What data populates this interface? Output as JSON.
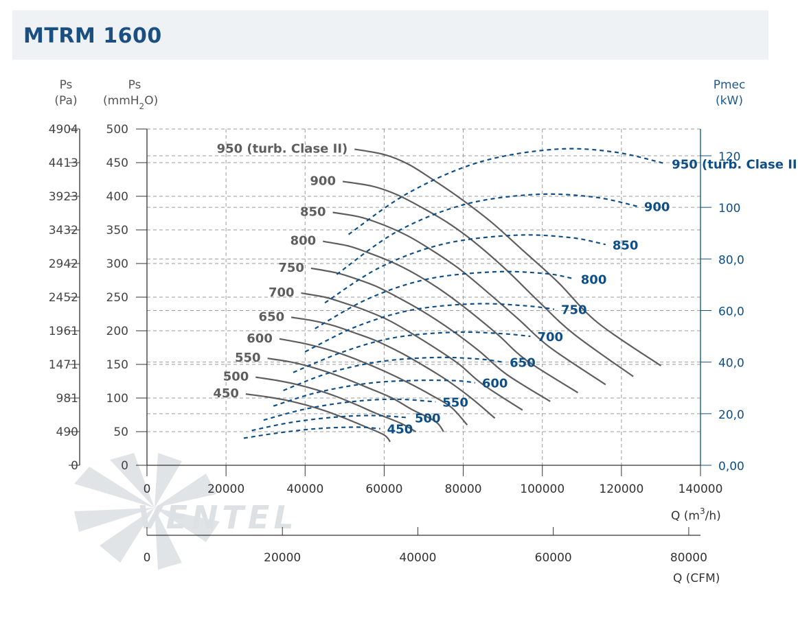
{
  "title": "MTRM 1600",
  "watermark": "VENTEL",
  "colors": {
    "pressure": "#5e5e5e",
    "power": "#0d4f86",
    "grid": "#9a9a9a",
    "title_bg": "#eef2f5"
  },
  "axes_labels": {
    "ps_pa": [
      "Ps",
      "(Pa)"
    ],
    "ps_mm": {
      "line1": "Ps",
      "line2_pre": "(mmH",
      "sub": "2",
      "line2_post": "O)"
    },
    "pmec": [
      "Pmec",
      "(kW)"
    ],
    "q_m3h": {
      "pre": "Q (m",
      "sup": "3",
      "post": "/h)"
    },
    "q_cfm": "Q (CFM)"
  },
  "chart_data": {
    "type": "line",
    "title": "MTRM 1600",
    "x": {
      "label": "Q (m3/h)",
      "range": [
        0,
        140000
      ],
      "ticks": [
        0,
        20000,
        40000,
        60000,
        80000,
        100000,
        120000,
        140000
      ]
    },
    "x_cfm": {
      "label": "Q (CFM)",
      "ticks": [
        0,
        20000,
        40000,
        60000,
        80000
      ]
    },
    "y_left_mm": {
      "label": "Ps (mmH2O)",
      "range": [
        0,
        500
      ],
      "ticks": [
        0,
        50,
        100,
        150,
        200,
        250,
        300,
        350,
        400,
        450,
        500
      ]
    },
    "y_left_pa": {
      "label": "Ps (Pa)",
      "ticks": [
        "0",
        "490",
        "981",
        "1471",
        "1961",
        "2452",
        "2942",
        "3432",
        "3923",
        "4413",
        "4904"
      ]
    },
    "y_right": {
      "label": "Pmec (kW)",
      "range": [
        0,
        130
      ],
      "ticks": [
        "0,00",
        "20,0",
        "40,0",
        "60,0",
        "80,0",
        "100",
        "120"
      ],
      "tick_values": [
        0,
        20,
        40,
        60,
        80,
        100,
        120
      ]
    },
    "grid": true,
    "pressure_series": [
      {
        "name": "450",
        "points": [
          [
            25000,
            106
          ],
          [
            30000,
            102
          ],
          [
            35000,
            97
          ],
          [
            40000,
            90
          ],
          [
            45000,
            81
          ],
          [
            50000,
            70
          ],
          [
            55000,
            58
          ],
          [
            60000,
            45
          ],
          [
            61500,
            35
          ]
        ]
      },
      {
        "name": "500",
        "points": [
          [
            27500,
            131
          ],
          [
            33000,
            126
          ],
          [
            38000,
            120
          ],
          [
            43000,
            112
          ],
          [
            48000,
            102
          ],
          [
            53000,
            90
          ],
          [
            58000,
            77
          ],
          [
            64000,
            63
          ],
          [
            68000,
            50
          ]
        ]
      },
      {
        "name": "550",
        "points": [
          [
            30500,
            159
          ],
          [
            36000,
            154
          ],
          [
            41000,
            147
          ],
          [
            46000,
            138
          ],
          [
            51000,
            127
          ],
          [
            56000,
            115
          ],
          [
            62000,
            100
          ],
          [
            67000,
            83
          ],
          [
            73000,
            65
          ],
          [
            75000,
            50
          ]
        ]
      },
      {
        "name": "600",
        "points": [
          [
            33500,
            188
          ],
          [
            39000,
            182
          ],
          [
            44000,
            175
          ],
          [
            49000,
            166
          ],
          [
            54000,
            155
          ],
          [
            60000,
            140
          ],
          [
            66000,
            123
          ],
          [
            72000,
            104
          ],
          [
            77000,
            86
          ],
          [
            81000,
            60
          ]
        ]
      },
      {
        "name": "650",
        "points": [
          [
            36500,
            220
          ],
          [
            42000,
            215
          ],
          [
            47000,
            208
          ],
          [
            52000,
            198
          ],
          [
            58000,
            185
          ],
          [
            64000,
            168
          ],
          [
            70000,
            148
          ],
          [
            76000,
            126
          ],
          [
            82000,
            100
          ],
          [
            88000,
            70
          ]
        ]
      },
      {
        "name": "700",
        "points": [
          [
            39000,
            256
          ],
          [
            45000,
            250
          ],
          [
            50000,
            241
          ],
          [
            55000,
            231
          ],
          [
            61000,
            216
          ],
          [
            67000,
            196
          ],
          [
            73000,
            174
          ],
          [
            79000,
            150
          ],
          [
            85000,
            120
          ],
          [
            95000,
            82
          ]
        ]
      },
      {
        "name": "750",
        "points": [
          [
            41500,
            293
          ],
          [
            48000,
            286
          ],
          [
            53000,
            277
          ],
          [
            58000,
            266
          ],
          [
            64000,
            248
          ],
          [
            70000,
            228
          ],
          [
            77000,
            201
          ],
          [
            84000,
            170
          ],
          [
            91000,
            135
          ],
          [
            102000,
            95
          ]
        ]
      },
      {
        "name": "800",
        "points": [
          [
            44500,
            333
          ],
          [
            51000,
            326
          ],
          [
            56000,
            316
          ],
          [
            62000,
            302
          ],
          [
            68000,
            284
          ],
          [
            75000,
            258
          ],
          [
            82000,
            227
          ],
          [
            89000,
            193
          ],
          [
            96000,
            156
          ],
          [
            109000,
            108
          ]
        ]
      },
      {
        "name": "850",
        "points": [
          [
            47000,
            376
          ],
          [
            54000,
            369
          ],
          [
            60000,
            357
          ],
          [
            66000,
            341
          ],
          [
            72000,
            320
          ],
          [
            79000,
            292
          ],
          [
            86000,
            258
          ],
          [
            94000,
            217
          ],
          [
            102000,
            175
          ],
          [
            116000,
            120
          ]
        ]
      },
      {
        "name": "900",
        "points": [
          [
            49500,
            422
          ],
          [
            57000,
            415
          ],
          [
            63000,
            403
          ],
          [
            69000,
            385
          ],
          [
            76000,
            361
          ],
          [
            83000,
            331
          ],
          [
            91000,
            290
          ],
          [
            99000,
            244
          ],
          [
            108000,
            195
          ],
          [
            123000,
            132
          ]
        ]
      },
      {
        "name": "950 (turb. Clase II)",
        "points": [
          [
            52500,
            470
          ],
          [
            60000,
            462
          ],
          [
            66000,
            448
          ],
          [
            72000,
            426
          ],
          [
            79000,
            398
          ],
          [
            87000,
            362
          ],
          [
            95000,
            320
          ],
          [
            104000,
            272
          ],
          [
            114000,
            212
          ],
          [
            130000,
            148
          ]
        ]
      }
    ],
    "power_series": [
      {
        "name": "450",
        "points": [
          [
            24500,
            10.5
          ],
          [
            33000,
            12.5
          ],
          [
            43000,
            14.2
          ],
          [
            53000,
            14.8
          ],
          [
            59000,
            14.2
          ]
        ]
      },
      {
        "name": "500",
        "points": [
          [
            26500,
            13.5
          ],
          [
            36000,
            16.5
          ],
          [
            47000,
            18.6
          ],
          [
            57000,
            19.3
          ],
          [
            66000,
            18.5
          ]
        ]
      },
      {
        "name": "550",
        "points": [
          [
            29500,
            17.5
          ],
          [
            40000,
            21.8
          ],
          [
            52000,
            24.7
          ],
          [
            63000,
            25.6
          ],
          [
            73000,
            24.6
          ]
        ]
      },
      {
        "name": "600",
        "points": [
          [
            32000,
            23
          ],
          [
            43000,
            28.2
          ],
          [
            56000,
            31.8
          ],
          [
            68000,
            32.9
          ],
          [
            78000,
            32.8
          ],
          [
            83000,
            32
          ]
        ]
      },
      {
        "name": "650",
        "points": [
          [
            34500,
            29
          ],
          [
            46000,
            35.8
          ],
          [
            59000,
            40.2
          ],
          [
            73000,
            41.8
          ],
          [
            84000,
            41.2
          ],
          [
            90000,
            40
          ]
        ]
      },
      {
        "name": "700",
        "points": [
          [
            37000,
            36
          ],
          [
            50000,
            44.2
          ],
          [
            63000,
            49.6
          ],
          [
            78000,
            51.6
          ],
          [
            90000,
            51
          ],
          [
            97000,
            50
          ]
        ]
      },
      {
        "name": "750",
        "points": [
          [
            40000,
            44
          ],
          [
            53000,
            53.8
          ],
          [
            67000,
            60.2
          ],
          [
            83000,
            62.6
          ],
          [
            96000,
            61.8
          ],
          [
            103000,
            60.5
          ]
        ]
      },
      {
        "name": "800",
        "points": [
          [
            42500,
            53
          ],
          [
            56000,
            64.6
          ],
          [
            71000,
            72.2
          ],
          [
            88000,
            75
          ],
          [
            101000,
            74.3
          ],
          [
            108000,
            72.3
          ]
        ]
      },
      {
        "name": "850",
        "points": [
          [
            45000,
            63
          ],
          [
            59000,
            76.8
          ],
          [
            75000,
            85.8
          ],
          [
            93000,
            89.2
          ],
          [
            107000,
            88.3
          ],
          [
            116000,
            85.6
          ]
        ]
      },
      {
        "name": "900",
        "points": [
          [
            48000,
            74
          ],
          [
            63000,
            90.4
          ],
          [
            80000,
            101
          ],
          [
            98000,
            105
          ],
          [
            113000,
            104
          ],
          [
            124000,
            100.4
          ]
        ]
      },
      {
        "name": "950 (turb. Clase II)",
        "points": [
          [
            51000,
            89.5
          ],
          [
            66000,
            105.5
          ],
          [
            84000,
            117.5
          ],
          [
            103000,
            122.5
          ],
          [
            118000,
            121.5
          ],
          [
            131000,
            117
          ]
        ]
      }
    ]
  }
}
